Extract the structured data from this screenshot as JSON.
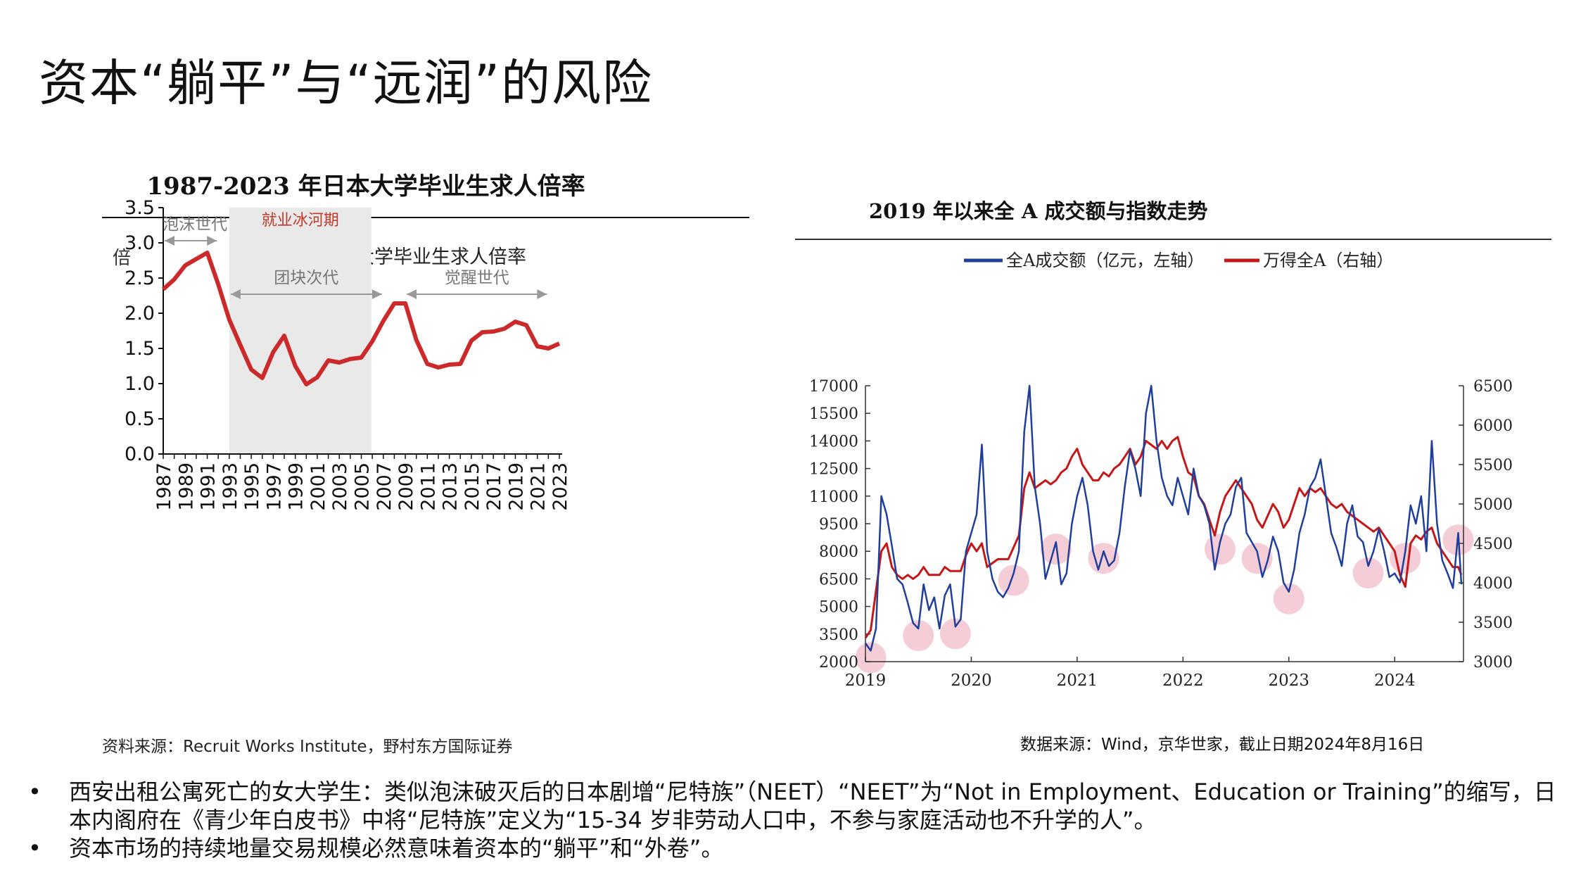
{
  "page": {
    "title": "资本“躺平”与“远润”的风险"
  },
  "left_chart": {
    "title": "1987-2023 年日本大学毕业生求人倍率",
    "y_unit": "倍",
    "legend": "大学毕业生求人倍率",
    "source": "资料来源：Recruit Works Institute，野村东方国际证券",
    "shade_label": "就业冰河期",
    "annotations": [
      {
        "label": "泡沫世代"
      },
      {
        "label": "团块次代"
      },
      {
        "label": "觉醒世代"
      }
    ],
    "colors": {
      "line": "#cc2a2a",
      "shade": "#e9e9e9",
      "arrow": "#999999",
      "shade_text": "#c0392b"
    }
  },
  "right_chart": {
    "title": "2019 年以来全 A 成交额与指数走势",
    "legend_left": "全A成交额（亿元，左轴）",
    "legend_right": "万得全A（右轴）",
    "source": "数据来源：Wind，京华世家，截止日期2024年8月16日",
    "colors": {
      "left_series": "#1f3f9a",
      "right_series": "#c41818",
      "highlight": "#f2c4cf"
    }
  },
  "bullets": [
    {
      "marker": "•",
      "text": "西安出租公寓死亡的女大学生：类似泡沫破灭后的日本剧增“尼特族”（NEET）“NEET”为“Not in Employment、Education or Training”的缩写，日本内阁府在《青少年白皮书》中将“尼特族”定义为“15-34 岁非劳动人口中，不参与家庭活动也不升学的人”。"
    },
    {
      "marker": "•",
      "text": "资本市场的持续地量交易规模必然意味着资本的“躺平”和“外卷”。"
    }
  ],
  "chart_data": [
    {
      "type": "line",
      "title": "1987-2023 年日本大学毕业生求人倍率",
      "ylabel": "倍",
      "ylim": [
        0,
        3.5
      ],
      "yticks": [
        "0.0",
        "0.5",
        "1.0",
        "1.5",
        "2.0",
        "2.5",
        "3.0",
        "3.5"
      ],
      "xticks": [
        "1987",
        "1989",
        "1991",
        "1993",
        "1995",
        "1997",
        "1999",
        "2001",
        "2003",
        "2005",
        "2007",
        "2009",
        "2011",
        "2013",
        "2015",
        "2017",
        "2019",
        "2021",
        "2023"
      ],
      "shaded_range": [
        1993,
        2005
      ],
      "arrows": [
        {
          "label": "泡沫世代",
          "from": 1987,
          "to": 1992,
          "y": 3.03
        },
        {
          "label": "团块次代",
          "from": 1993,
          "to": 2007,
          "y": 2.27
        },
        {
          "label": "觉醒世代",
          "from": 2009,
          "to": 2022,
          "y": 2.27
        }
      ],
      "series": [
        {
          "name": "大学毕业生求人倍率",
          "x": [
            1987,
            1988,
            1989,
            1990,
            1991,
            1992,
            1993,
            1994,
            1995,
            1996,
            1997,
            1998,
            1999,
            2000,
            2001,
            2002,
            2003,
            2004,
            2005,
            2006,
            2007,
            2008,
            2009,
            2010,
            2011,
            2012,
            2013,
            2014,
            2015,
            2016,
            2017,
            2018,
            2019,
            2020,
            2021,
            2022,
            2023
          ],
          "values": [
            2.34,
            2.48,
            2.68,
            2.77,
            2.86,
            2.41,
            1.91,
            1.55,
            1.2,
            1.08,
            1.45,
            1.68,
            1.25,
            0.99,
            1.09,
            1.33,
            1.3,
            1.35,
            1.37,
            1.6,
            1.89,
            2.14,
            2.14,
            1.62,
            1.28,
            1.23,
            1.27,
            1.28,
            1.61,
            1.73,
            1.74,
            1.78,
            1.88,
            1.83,
            1.53,
            1.5,
            1.57
          ]
        }
      ]
    },
    {
      "type": "line",
      "title": "2019 年以来全 A 成交额与指数走势",
      "xticks": [
        "2019",
        "2020",
        "2021",
        "2022",
        "2023",
        "2024"
      ],
      "left_axis": {
        "ylim": [
          2000,
          17000
        ],
        "ticks": [
          "2000",
          "3500",
          "5000",
          "6500",
          "8000",
          "9500",
          "11000",
          "12500",
          "14000",
          "15500",
          "17000"
        ]
      },
      "right_axis": {
        "ylim": [
          3000,
          6500
        ],
        "ticks": [
          "3000",
          "3500",
          "4000",
          "4500",
          "5000",
          "5500",
          "6000",
          "6500"
        ]
      },
      "series": [
        {
          "name": "全A成交额（亿元，左轴）",
          "axis": "left",
          "x": [
            2019.0,
            2019.05,
            2019.1,
            2019.15,
            2019.2,
            2019.25,
            2019.3,
            2019.35,
            2019.4,
            2019.45,
            2019.5,
            2019.55,
            2019.6,
            2019.65,
            2019.7,
            2019.75,
            2019.8,
            2019.85,
            2019.9,
            2019.95,
            2020.0,
            2020.05,
            2020.1,
            2020.15,
            2020.2,
            2020.25,
            2020.3,
            2020.35,
            2020.4,
            2020.45,
            2020.5,
            2020.55,
            2020.6,
            2020.65,
            2020.7,
            2020.75,
            2020.8,
            2020.85,
            2020.9,
            2020.95,
            2021.0,
            2021.05,
            2021.1,
            2021.15,
            2021.2,
            2021.25,
            2021.3,
            2021.35,
            2021.4,
            2021.45,
            2021.5,
            2021.55,
            2021.6,
            2021.65,
            2021.7,
            2021.75,
            2021.8,
            2021.85,
            2021.9,
            2021.95,
            2022.0,
            2022.05,
            2022.1,
            2022.15,
            2022.2,
            2022.25,
            2022.3,
            2022.35,
            2022.4,
            2022.45,
            2022.5,
            2022.55,
            2022.6,
            2022.65,
            2022.7,
            2022.75,
            2022.8,
            2022.85,
            2022.9,
            2022.95,
            2023.0,
            2023.05,
            2023.1,
            2023.15,
            2023.2,
            2023.25,
            2023.3,
            2023.35,
            2023.4,
            2023.45,
            2023.5,
            2023.55,
            2023.6,
            2023.65,
            2023.7,
            2023.75,
            2023.8,
            2023.85,
            2023.9,
            2023.95,
            2024.0,
            2024.05,
            2024.1,
            2024.15,
            2024.2,
            2024.25,
            2024.3,
            2024.35,
            2024.4,
            2024.45,
            2024.5,
            2024.55,
            2024.6,
            2024.63
          ],
          "values": [
            3000,
            2600,
            3800,
            11000,
            10000,
            8300,
            6500,
            6200,
            5200,
            4100,
            3800,
            6200,
            4800,
            5500,
            3800,
            5600,
            6200,
            3900,
            4300,
            8000,
            9000,
            10000,
            13800,
            8000,
            6500,
            5800,
            5500,
            6000,
            6800,
            8000,
            14500,
            17000,
            11500,
            9500,
            6500,
            7500,
            8500,
            6200,
            6800,
            9500,
            11000,
            12000,
            10500,
            8000,
            7000,
            8000,
            7200,
            7500,
            9000,
            11500,
            13500,
            12500,
            11000,
            15500,
            17000,
            14000,
            12000,
            11000,
            10500,
            12000,
            11000,
            10000,
            12500,
            11000,
            10500,
            9500,
            7000,
            8500,
            9500,
            10000,
            11500,
            12000,
            9000,
            8500,
            8000,
            6600,
            7500,
            8800,
            8000,
            6300,
            5800,
            7000,
            9000,
            10000,
            11500,
            12000,
            13000,
            11000,
            9000,
            8200,
            7200,
            9500,
            10500,
            8800,
            8500,
            7200,
            8000,
            9200,
            8000,
            6600,
            6800,
            6300,
            8000,
            10500,
            9500,
            11000,
            8000,
            14000,
            9500,
            7500,
            6800,
            6000,
            9000,
            6200
          ]
        },
        {
          "name": "万得全A（右轴）",
          "axis": "right",
          "x": [
            2019.0,
            2019.05,
            2019.1,
            2019.15,
            2019.2,
            2019.25,
            2019.3,
            2019.35,
            2019.4,
            2019.45,
            2019.5,
            2019.55,
            2019.6,
            2019.65,
            2019.7,
            2019.75,
            2019.8,
            2019.85,
            2019.9,
            2019.95,
            2020.0,
            2020.05,
            2020.1,
            2020.15,
            2020.2,
            2020.25,
            2020.3,
            2020.35,
            2020.4,
            2020.45,
            2020.5,
            2020.55,
            2020.6,
            2020.65,
            2020.7,
            2020.75,
            2020.8,
            2020.85,
            2020.9,
            2020.95,
            2021.0,
            2021.05,
            2021.1,
            2021.15,
            2021.2,
            2021.25,
            2021.3,
            2021.35,
            2021.4,
            2021.45,
            2021.5,
            2021.55,
            2021.6,
            2021.65,
            2021.7,
            2021.75,
            2021.8,
            2021.85,
            2021.9,
            2021.95,
            2022.0,
            2022.05,
            2022.1,
            2022.15,
            2022.2,
            2022.25,
            2022.3,
            2022.35,
            2022.4,
            2022.45,
            2022.5,
            2022.55,
            2022.6,
            2022.65,
            2022.7,
            2022.75,
            2022.8,
            2022.85,
            2022.9,
            2022.95,
            2023.0,
            2023.05,
            2023.1,
            2023.15,
            2023.2,
            2023.25,
            2023.3,
            2023.35,
            2023.4,
            2023.45,
            2023.5,
            2023.55,
            2023.6,
            2023.65,
            2023.7,
            2023.75,
            2023.8,
            2023.85,
            2023.9,
            2023.95,
            2024.0,
            2024.05,
            2024.1,
            2024.15,
            2024.2,
            2024.25,
            2024.3,
            2024.35,
            2024.4,
            2024.45,
            2024.5,
            2024.55,
            2024.6,
            2024.63
          ],
          "values": [
            3300,
            3400,
            3900,
            4400,
            4500,
            4200,
            4100,
            4050,
            4100,
            4050,
            4100,
            4200,
            4100,
            4100,
            4100,
            4200,
            4150,
            4150,
            4150,
            4350,
            4500,
            4400,
            4500,
            4200,
            4250,
            4300,
            4300,
            4300,
            4450,
            4600,
            5200,
            5400,
            5200,
            5250,
            5300,
            5250,
            5300,
            5400,
            5450,
            5600,
            5700,
            5500,
            5400,
            5300,
            5300,
            5400,
            5350,
            5450,
            5500,
            5600,
            5700,
            5500,
            5600,
            5800,
            5750,
            5700,
            5800,
            5700,
            5800,
            5850,
            5600,
            5400,
            5350,
            5100,
            5000,
            4800,
            4600,
            4900,
            5100,
            5200,
            5300,
            5200,
            5100,
            5000,
            4800,
            4700,
            4850,
            5000,
            4900,
            4700,
            4800,
            5000,
            5200,
            5100,
            5200,
            5150,
            5200,
            5100,
            5000,
            4950,
            5000,
            4900,
            4850,
            4800,
            4750,
            4700,
            4650,
            4700,
            4600,
            4500,
            4400,
            4100,
            3950,
            4500,
            4600,
            4550,
            4650,
            4700,
            4500,
            4400,
            4300,
            4200,
            4200,
            4100
          ]
        }
      ],
      "highlights": [
        2019.05,
        2019.5,
        2019.85,
        2020.4,
        2020.8,
        2021.25,
        2022.35,
        2022.7,
        2023.0,
        2023.75,
        2024.1,
        2024.6
      ]
    }
  ]
}
